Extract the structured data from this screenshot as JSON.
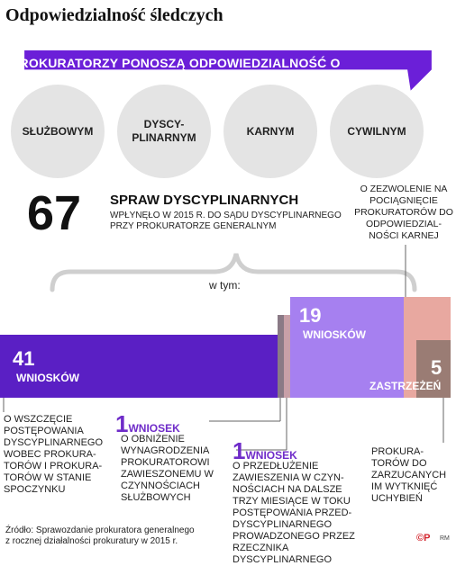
{
  "title": "Odpowiedzialność śledczych",
  "banner": "PROKURATORZY PONOSZĄ ODPOWIEDZIALNOŚĆ O CHARAKTERZE:",
  "circles": [
    "SŁUŻBOWYM",
    "DYSCY-\nPLINARNYM",
    "KARNYM",
    "CYWILNYM"
  ],
  "total": {
    "number": "67",
    "label": "SPRAW DYSCYPLINARNYCH",
    "sub": "WPŁYNĘŁO W 2015 R. DO SĄDU DYSCYPLINARNEGO PRZY PROKURATORZE GENERALNYM"
  },
  "zezwolenie_note": "O ZEZWOLENIE NA POCIĄGNIĘCIE PROKURATORÓW DO ODPOWIEDZIAL­NOŚCI KARNEJ",
  "w_tym": "w tym:",
  "segments": {
    "wnioski_41": {
      "number": "41",
      "label": "WNIOSKÓW",
      "value": 41
    },
    "wnioski_19": {
      "number": "19",
      "label": "WNIOSKÓW",
      "value": 19
    },
    "zastrzezen_5": {
      "number": "5",
      "label": "ZASTRZEŻEŃ",
      "value": 5
    },
    "wniosek_a": {
      "value": 1
    },
    "wniosek_b": {
      "value": 1
    }
  },
  "notes": {
    "wszczecie": "O WSZCZĘCIE POSTĘPOWANIA DYSCYPLINARNEGO WOBEC PROKURA-TORÓW I PROKURA-TORÓW W STANIE SPOCZYNKU",
    "obnizenie_num": "1",
    "obnizenie_head": "WNIOSEK",
    "obnizenie": "O OBNIŻENIE WYNAGRODZENIA PROKURATOROWI ZAWIESZONEMU W CZYNNOŚCIACH SŁUŻBOWYCH",
    "przedluzenie_num": "1",
    "przedluzenie_head": "WNIOSEK",
    "przedluzenie": "O PRZEDŁUŻENIE ZAWIESZENIA W CZYN-NOŚCIACH NA DALSZE TRZY MIESIĄCE W TOKU POSTĘPOWANIA PRZED-DYSCYPLINARNEGO PROWADZONEGO PRZEZ RZECZNIKA DYSCYPLINARNEGO",
    "zastrzezenia": "PROKURA-TORÓW DO ZARZUCANYCH IM WYTKNIĘĆ UCHYBIEŃ"
  },
  "source": "Źródło: Sprawozdanie prokuratora generalnego\nz rocznej działalności prokuratury w 2015 r.",
  "logo": "©P",
  "author": "RM",
  "colors": {
    "purple": "#5a1fc4",
    "light_purple": "#a680f0",
    "pink": "#e8a8a0",
    "brown": "#9a7c74",
    "banner": "#6b1fd8"
  }
}
